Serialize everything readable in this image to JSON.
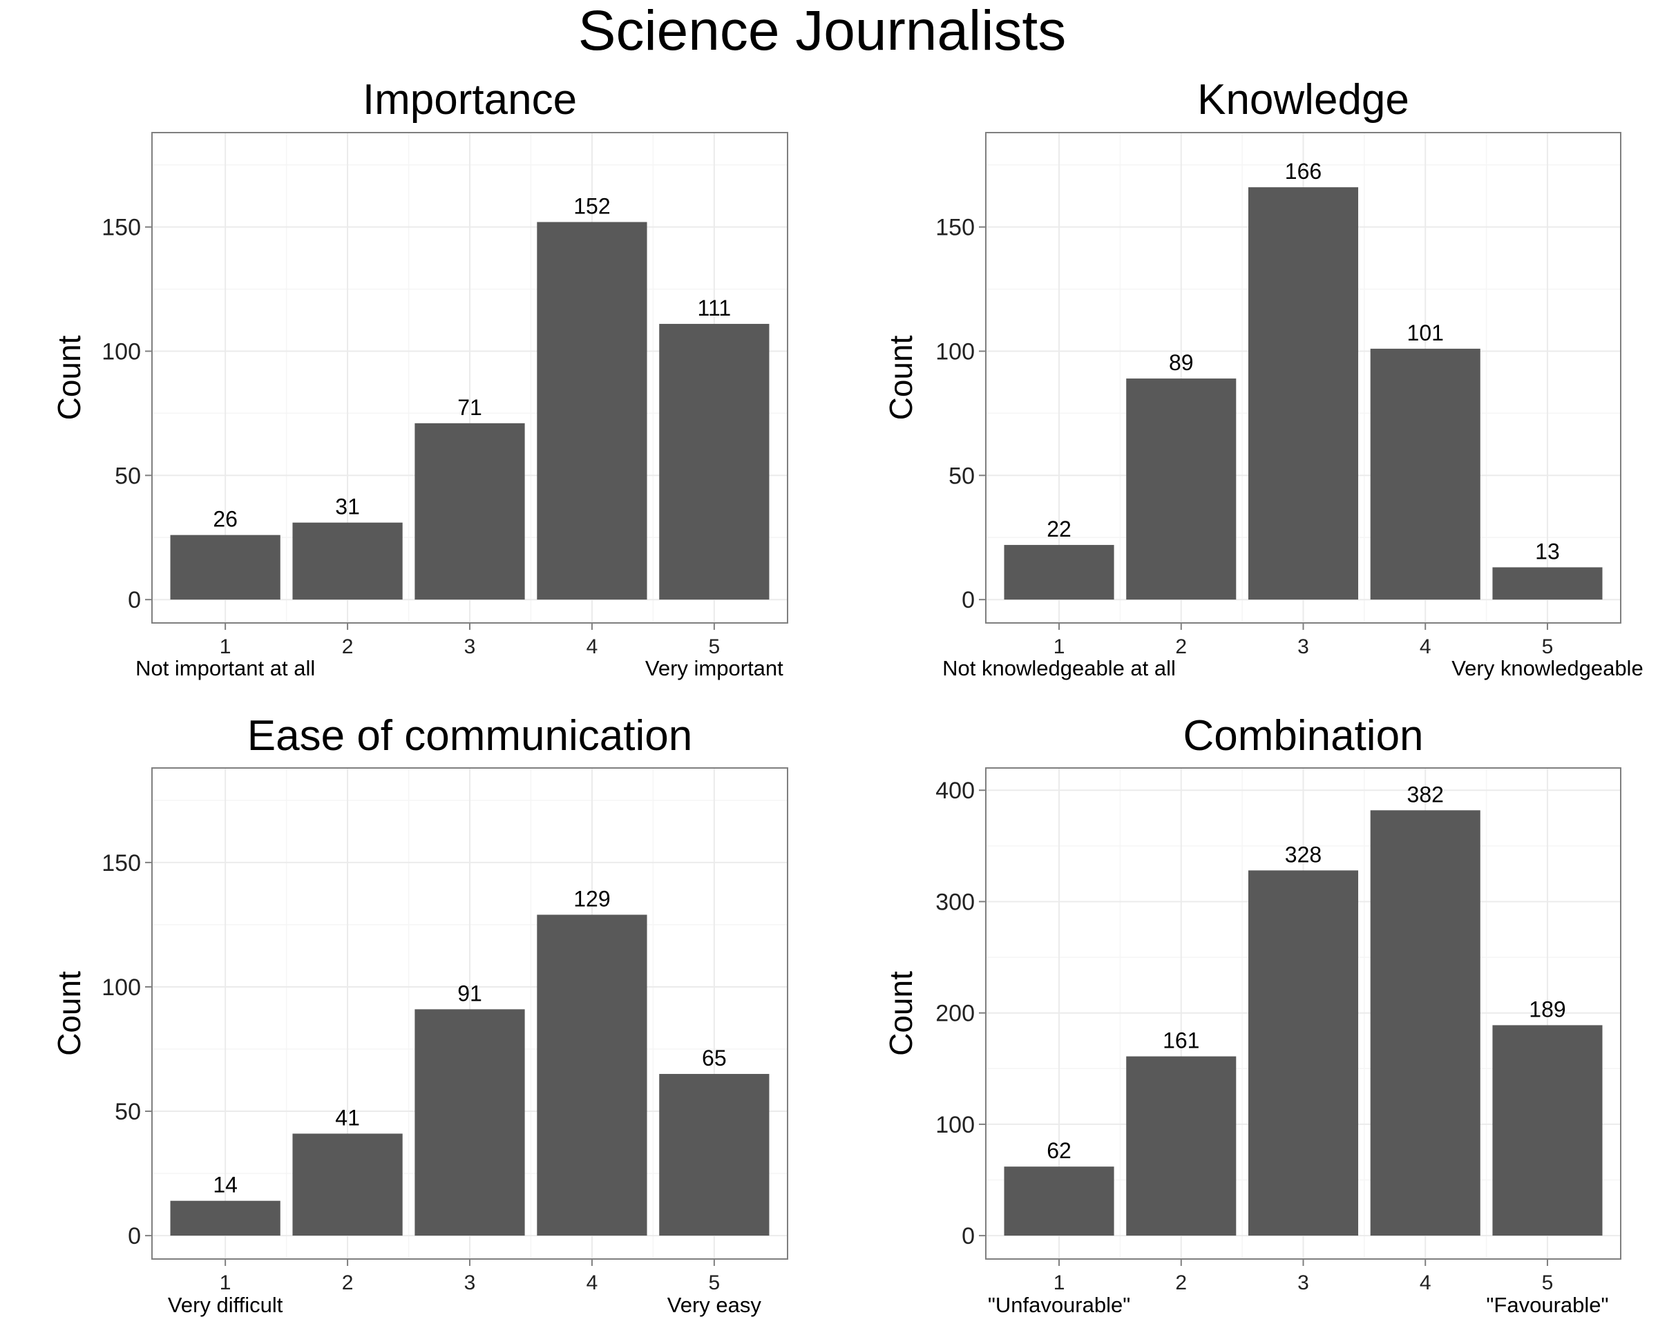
{
  "title": "Science Journalists",
  "chart_data": [
    {
      "type": "bar",
      "title": "Importance",
      "ylabel": "Count",
      "categories": [
        "1",
        "2",
        "3",
        "4",
        "5"
      ],
      "values": [
        26,
        31,
        71,
        152,
        111
      ],
      "ylim": [
        0,
        188
      ],
      "yticks": [
        0,
        50,
        100,
        150
      ],
      "anchor_low": "Not important at all",
      "anchor_high": "Very important"
    },
    {
      "type": "bar",
      "title": "Knowledge",
      "ylabel": "Count",
      "categories": [
        "1",
        "2",
        "3",
        "4",
        "5"
      ],
      "values": [
        22,
        89,
        166,
        101,
        13
      ],
      "ylim": [
        0,
        188
      ],
      "yticks": [
        0,
        50,
        100,
        150
      ],
      "anchor_low": "Not knowledgeable at all",
      "anchor_high": "Very knowledgeable"
    },
    {
      "type": "bar",
      "title": "Ease of communication",
      "ylabel": "Count",
      "categories": [
        "1",
        "2",
        "3",
        "4",
        "5"
      ],
      "values": [
        14,
        41,
        91,
        129,
        65
      ],
      "ylim": [
        0,
        188
      ],
      "yticks": [
        0,
        50,
        100,
        150
      ],
      "anchor_low": "Very difficult",
      "anchor_high": "Very easy"
    },
    {
      "type": "bar",
      "title": "Combination",
      "ylabel": "Count",
      "categories": [
        "1",
        "2",
        "3",
        "4",
        "5"
      ],
      "values": [
        62,
        161,
        328,
        382,
        189
      ],
      "ylim": [
        0,
        420
      ],
      "yticks": [
        0,
        100,
        200,
        300,
        400
      ],
      "anchor_low": "\"Unfavourable\"",
      "anchor_high": "\"Favourable\""
    }
  ]
}
